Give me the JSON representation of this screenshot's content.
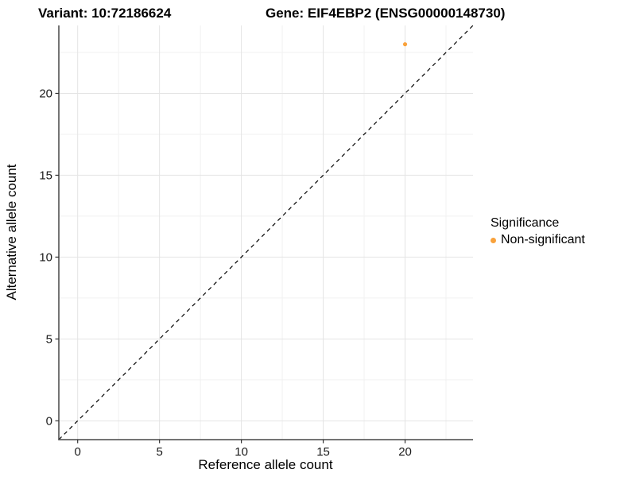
{
  "header": {
    "title_left": "Variant: 10:72186624",
    "title_right": "Gene: EIF4EBP2 (ENSG00000148730)"
  },
  "chart_data": {
    "type": "scatter",
    "title": "Variant: 10:72186624   Gene: EIF4EBP2 (ENSG00000148730)",
    "xlabel": "Reference allele count",
    "ylabel": "Alternative allele count",
    "xlim": [
      -1.15,
      24.15
    ],
    "ylim": [
      -1.15,
      24.15
    ],
    "xticks": [
      0,
      5,
      10,
      15,
      20
    ],
    "yticks": [
      0,
      5,
      10,
      15,
      20
    ],
    "xminor": [
      2.5,
      7.5,
      12.5,
      17.5,
      22.5
    ],
    "yminor": [
      2.5,
      7.5,
      12.5,
      17.5,
      22.5
    ],
    "grid": "major+minor",
    "identity_line": {
      "slope": 1,
      "intercept": 0,
      "style": "dashed",
      "color": "#000000"
    },
    "series": [
      {
        "name": "Non-significant",
        "color": "#F9A23C",
        "points": [
          {
            "x": 20,
            "y": 23
          }
        ]
      }
    ],
    "legend": {
      "title": "Significance",
      "position": "right",
      "entries": [
        {
          "label": "Non-significant",
          "color": "#F9A23C"
        }
      ]
    },
    "colors": {
      "grid_major": "#E4E4E4",
      "grid_minor": "#F1F1F1",
      "axis_line": "#474747",
      "tick_mark": "#333333",
      "text": "#000000"
    }
  }
}
